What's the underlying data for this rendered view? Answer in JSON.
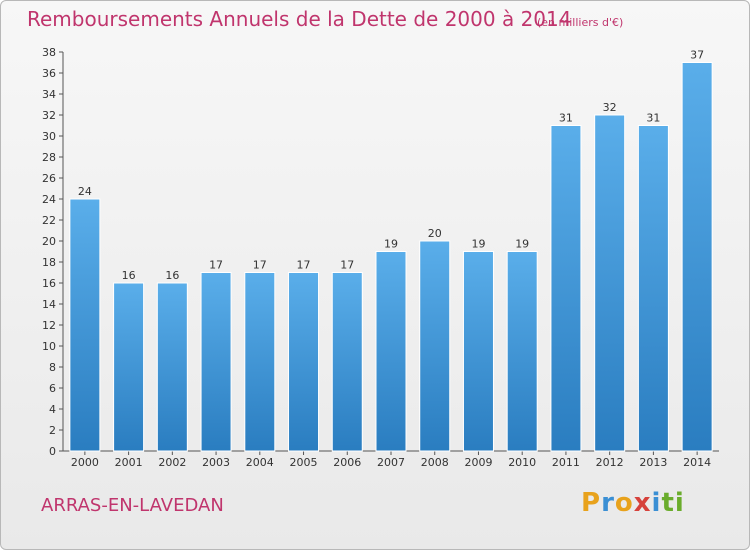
{
  "header": {
    "title": "Remboursements Annuels de la Dette de 2000 à 2014",
    "subtitle": "(en milliers d'€)"
  },
  "footer": {
    "place": "ARRAS-EN-LAVEDAN",
    "logo_text": "Proxiti"
  },
  "colors": {
    "title": "#c0356d",
    "bar_top": "#5aaeea",
    "bar_bottom": "#2a7dc0"
  },
  "chart_data": {
    "type": "bar",
    "title": "Remboursements Annuels de la Dette de 2000 à 2014",
    "subtitle": "(en milliers d'€)",
    "xlabel": "",
    "ylabel": "",
    "categories": [
      "2000",
      "2001",
      "2002",
      "2003",
      "2004",
      "2005",
      "2006",
      "2007",
      "2008",
      "2009",
      "2010",
      "2011",
      "2012",
      "2013",
      "2014"
    ],
    "values": [
      24,
      16,
      16,
      17,
      17,
      17,
      17,
      19,
      20,
      19,
      19,
      31,
      32,
      31,
      37
    ],
    "ylim": [
      0,
      38
    ],
    "yticks": [
      0,
      2,
      4,
      6,
      8,
      10,
      12,
      14,
      16,
      18,
      20,
      22,
      24,
      26,
      28,
      30,
      32,
      34,
      36,
      38
    ],
    "grid": false,
    "data_labels": true
  }
}
